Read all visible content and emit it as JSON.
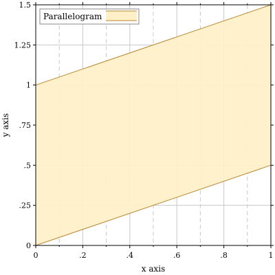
{
  "chart_data": {
    "type": "area",
    "title": "",
    "xlabel": "x axis",
    "ylabel": "y axis",
    "xlim": [
      0,
      1
    ],
    "ylim": [
      0,
      1.5
    ],
    "grid": true,
    "legend_position": "top-left",
    "x_ticks": [
      {
        "value": 0,
        "label": "0"
      },
      {
        "value": 0.2,
        "label": ".2"
      },
      {
        "value": 0.4,
        "label": ".4"
      },
      {
        "value": 0.6,
        "label": ".6"
      },
      {
        "value": 0.8,
        "label": ".8"
      },
      {
        "value": 1,
        "label": "1"
      }
    ],
    "y_ticks": [
      {
        "value": 0,
        "label": "0"
      },
      {
        "value": 0.25,
        "label": ".25"
      },
      {
        "value": 0.5,
        "label": ".5"
      },
      {
        "value": 0.75,
        "label": ".75"
      },
      {
        "value": 1,
        "label": "1"
      },
      {
        "value": 1.25,
        "label": "1.25"
      },
      {
        "value": 1.5,
        "label": "1.5"
      }
    ],
    "x_minor_ticks": [
      0.1,
      0.3,
      0.5,
      0.7,
      0.9
    ],
    "series": [
      {
        "name": "Parallelogram",
        "x": [
          0,
          1
        ],
        "lower": [
          0,
          0.5
        ],
        "upper": [
          1,
          1.5
        ],
        "fill_color": "#fff0c8",
        "line_color": "#b8862e"
      }
    ]
  }
}
